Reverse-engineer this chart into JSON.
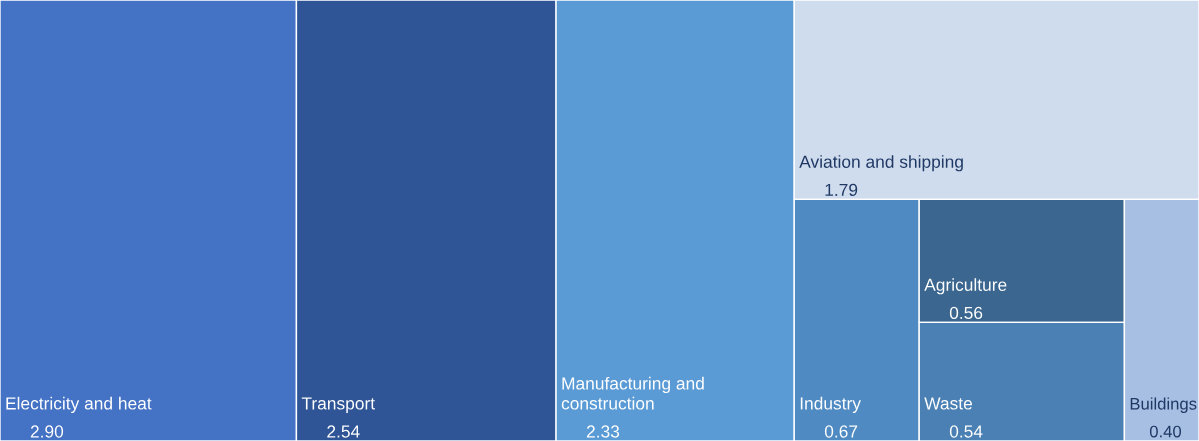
{
  "chart_data": {
    "type": "other",
    "categories": [
      "Electricity and heat",
      "Transport",
      "Manufacturing and construction",
      "Aviation and shipping",
      "Industry",
      "Agriculture",
      "Waste",
      "Buildings"
    ],
    "values": [
      2.9,
      2.54,
      2.33,
      1.79,
      0.67,
      0.56,
      0.54,
      0.4
    ],
    "value_labels": [
      "2.90",
      "2.54",
      "2.33",
      "1.79",
      "0.67",
      "0.56",
      "0.54",
      "0.40"
    ],
    "colors": [
      "#4472c4",
      "#2f5597",
      "#5b9bd5",
      "#cfdcee",
      "#4f8bc2",
      "#3a668f",
      "#4a80b4",
      "#a6bfe3"
    ]
  }
}
